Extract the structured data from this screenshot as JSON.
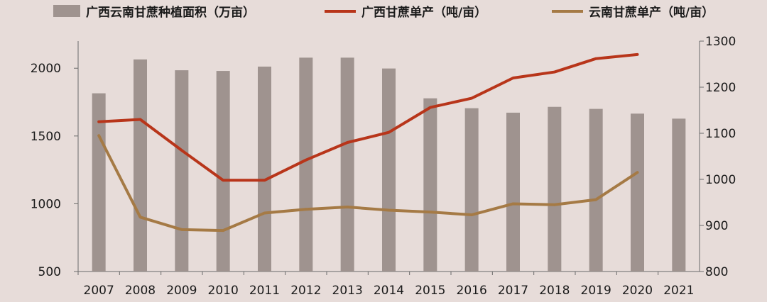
{
  "chart_data": {
    "type": "bar",
    "categories": [
      "2007",
      "2008",
      "2009",
      "2010",
      "2011",
      "2012",
      "2013",
      "2014",
      "2015",
      "2016",
      "2017",
      "2018",
      "2019",
      "2020",
      "2021"
    ],
    "series": [
      {
        "name": "广西云南甘蔗种植面积（万亩）",
        "type": "bar",
        "axis": "left",
        "color": "#9f938f",
        "values": [
          1815,
          2065,
          1985,
          1980,
          2012,
          2078,
          2078,
          1998,
          1778,
          1705,
          1672,
          1715,
          1700,
          1665,
          1628
        ]
      },
      {
        "name": "广西甘蔗单产（吨/亩）",
        "type": "line",
        "axis": "right",
        "color": "#b8351a",
        "values": [
          1125,
          1130,
          1063,
          998,
          998,
          1042,
          1080,
          1102,
          1156,
          1176,
          1220,
          1233,
          1262,
          1271,
          null
        ]
      },
      {
        "name": "云南甘蔗单产（吨/亩）",
        "type": "line",
        "axis": "right",
        "color": "#a57a45",
        "values": [
          1095,
          918,
          891,
          889,
          927,
          935,
          940,
          933,
          929,
          923,
          947,
          945,
          956,
          1015,
          null
        ]
      }
    ],
    "left_axis": {
      "ylim": [
        500,
        2200
      ],
      "ticks": [
        500,
        1000,
        1500,
        2000
      ]
    },
    "right_axis": {
      "ylim": [
        800,
        1300
      ],
      "ticks": [
        800,
        900,
        1000,
        1100,
        1200,
        1300
      ]
    },
    "legend_position": "top",
    "grid": false
  }
}
